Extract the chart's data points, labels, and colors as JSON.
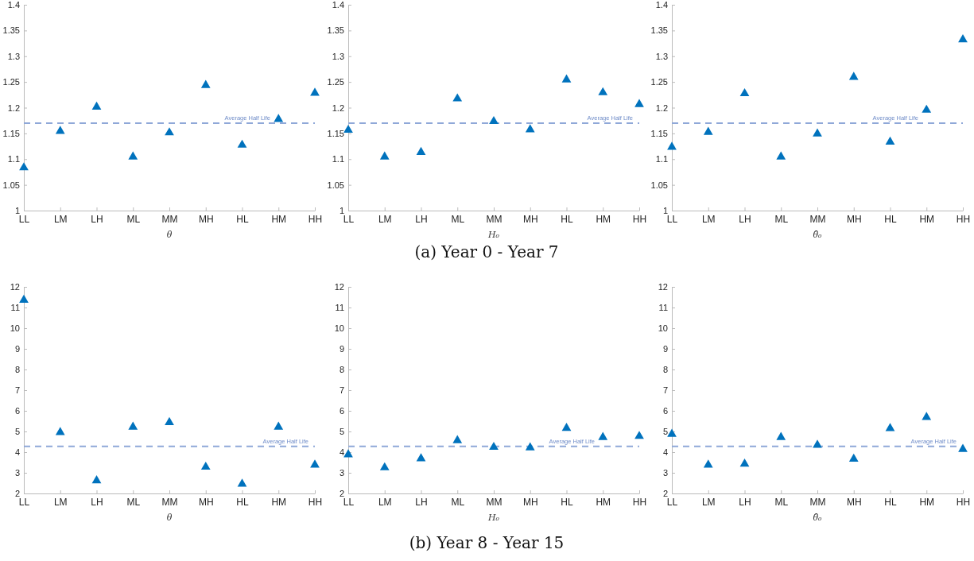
{
  "chart_data": [
    {
      "type": "scatter",
      "categories": [
        "LL",
        "LM",
        "LH",
        "ML",
        "MM",
        "MH",
        "HL",
        "HM",
        "HH"
      ],
      "values": [
        1.085,
        1.156,
        1.203,
        1.106,
        1.153,
        1.245,
        1.129,
        1.179,
        1.23
      ],
      "color": "#0072bd",
      "marker": "triangle",
      "xlabel": "θ",
      "ylim": [
        1,
        1.4
      ],
      "yticks": [
        1,
        1.05,
        1.1,
        1.15,
        1.2,
        1.25,
        1.3,
        1.35,
        1.4
      ],
      "ref_lines": [
        {
          "axis": "y",
          "value": 1.17,
          "label": "Average Half Life",
          "color": "#8fa8d8",
          "line_style": "dashed"
        }
      ]
    },
    {
      "type": "scatter",
      "categories": [
        "LL",
        "LM",
        "LH",
        "ML",
        "MM",
        "MH",
        "HL",
        "HM",
        "HH"
      ],
      "values": [
        1.158,
        1.106,
        1.115,
        1.219,
        1.175,
        1.159,
        1.256,
        1.231,
        1.208
      ],
      "color": "#0072bd",
      "marker": "triangle",
      "xlabel": "H₀",
      "ylim": [
        1,
        1.4
      ],
      "yticks": [
        1,
        1.05,
        1.1,
        1.15,
        1.2,
        1.25,
        1.3,
        1.35,
        1.4
      ],
      "ref_lines": [
        {
          "axis": "y",
          "value": 1.17,
          "label": "Average Half Life",
          "color": "#8fa8d8",
          "line_style": "dashed"
        }
      ],
      "annotations": [
        "(a) Year 0 - Year 7"
      ]
    },
    {
      "type": "scatter",
      "categories": [
        "LL",
        "LM",
        "LH",
        "ML",
        "MM",
        "MH",
        "HL",
        "HM",
        "HH"
      ],
      "values": [
        1.125,
        1.154,
        1.229,
        1.106,
        1.151,
        1.261,
        1.135,
        1.197,
        1.334
      ],
      "color": "#0072bd",
      "marker": "triangle",
      "xlabel": "θ̂₀",
      "ylim": [
        1,
        1.4
      ],
      "yticks": [
        1,
        1.05,
        1.1,
        1.15,
        1.2,
        1.25,
        1.3,
        1.35,
        1.4
      ],
      "ref_lines": [
        {
          "axis": "y",
          "value": 1.17,
          "label": "Average Half Life",
          "color": "#8fa8d8",
          "line_style": "dashed"
        }
      ]
    },
    {
      "type": "scatter",
      "categories": [
        "LL",
        "LM",
        "LH",
        "ML",
        "MM",
        "MH",
        "HL",
        "HM",
        "HH"
      ],
      "values": [
        11.4,
        5.0,
        2.66,
        5.26,
        5.48,
        3.32,
        2.5,
        5.26,
        3.42
      ],
      "color": "#0072bd",
      "marker": "triangle",
      "xlabel": "θ",
      "ylim": [
        2,
        12
      ],
      "yticks": [
        2,
        3,
        4,
        5,
        6,
        7,
        8,
        9,
        10,
        11,
        12
      ],
      "ref_lines": [
        {
          "axis": "y",
          "value": 4.28,
          "label": "Average Half Life",
          "color": "#8fa8d8",
          "line_style": "dashed"
        }
      ]
    },
    {
      "type": "scatter",
      "categories": [
        "LL",
        "LM",
        "LH",
        "ML",
        "MM",
        "MH",
        "HL",
        "HM",
        "HH"
      ],
      "values": [
        3.92,
        3.29,
        3.73,
        4.6,
        4.28,
        4.26,
        5.2,
        4.76,
        4.81
      ],
      "color": "#0072bd",
      "marker": "triangle",
      "xlabel": "H₀",
      "ylim": [
        2,
        12
      ],
      "yticks": [
        2,
        3,
        4,
        5,
        6,
        7,
        8,
        9,
        10,
        11,
        12
      ],
      "ref_lines": [
        {
          "axis": "y",
          "value": 4.28,
          "label": "Average Half Life",
          "color": "#8fa8d8",
          "line_style": "dashed"
        }
      ],
      "annotations": [
        "(b) Year 8 - Year 15"
      ]
    },
    {
      "type": "scatter",
      "categories": [
        "LL",
        "LM",
        "LH",
        "ML",
        "MM",
        "MH",
        "HL",
        "HM",
        "HH"
      ],
      "values": [
        4.91,
        3.42,
        3.47,
        4.76,
        4.38,
        3.71,
        5.19,
        5.73,
        4.18
      ],
      "color": "#0072bd",
      "marker": "triangle",
      "xlabel": "θ̂₀",
      "ylim": [
        2,
        12
      ],
      "yticks": [
        2,
        3,
        4,
        5,
        6,
        7,
        8,
        9,
        10,
        11,
        12
      ],
      "ref_lines": [
        {
          "axis": "y",
          "value": 4.28,
          "label": "Average Half Life",
          "color": "#8fa8d8",
          "line_style": "dashed"
        }
      ]
    }
  ]
}
